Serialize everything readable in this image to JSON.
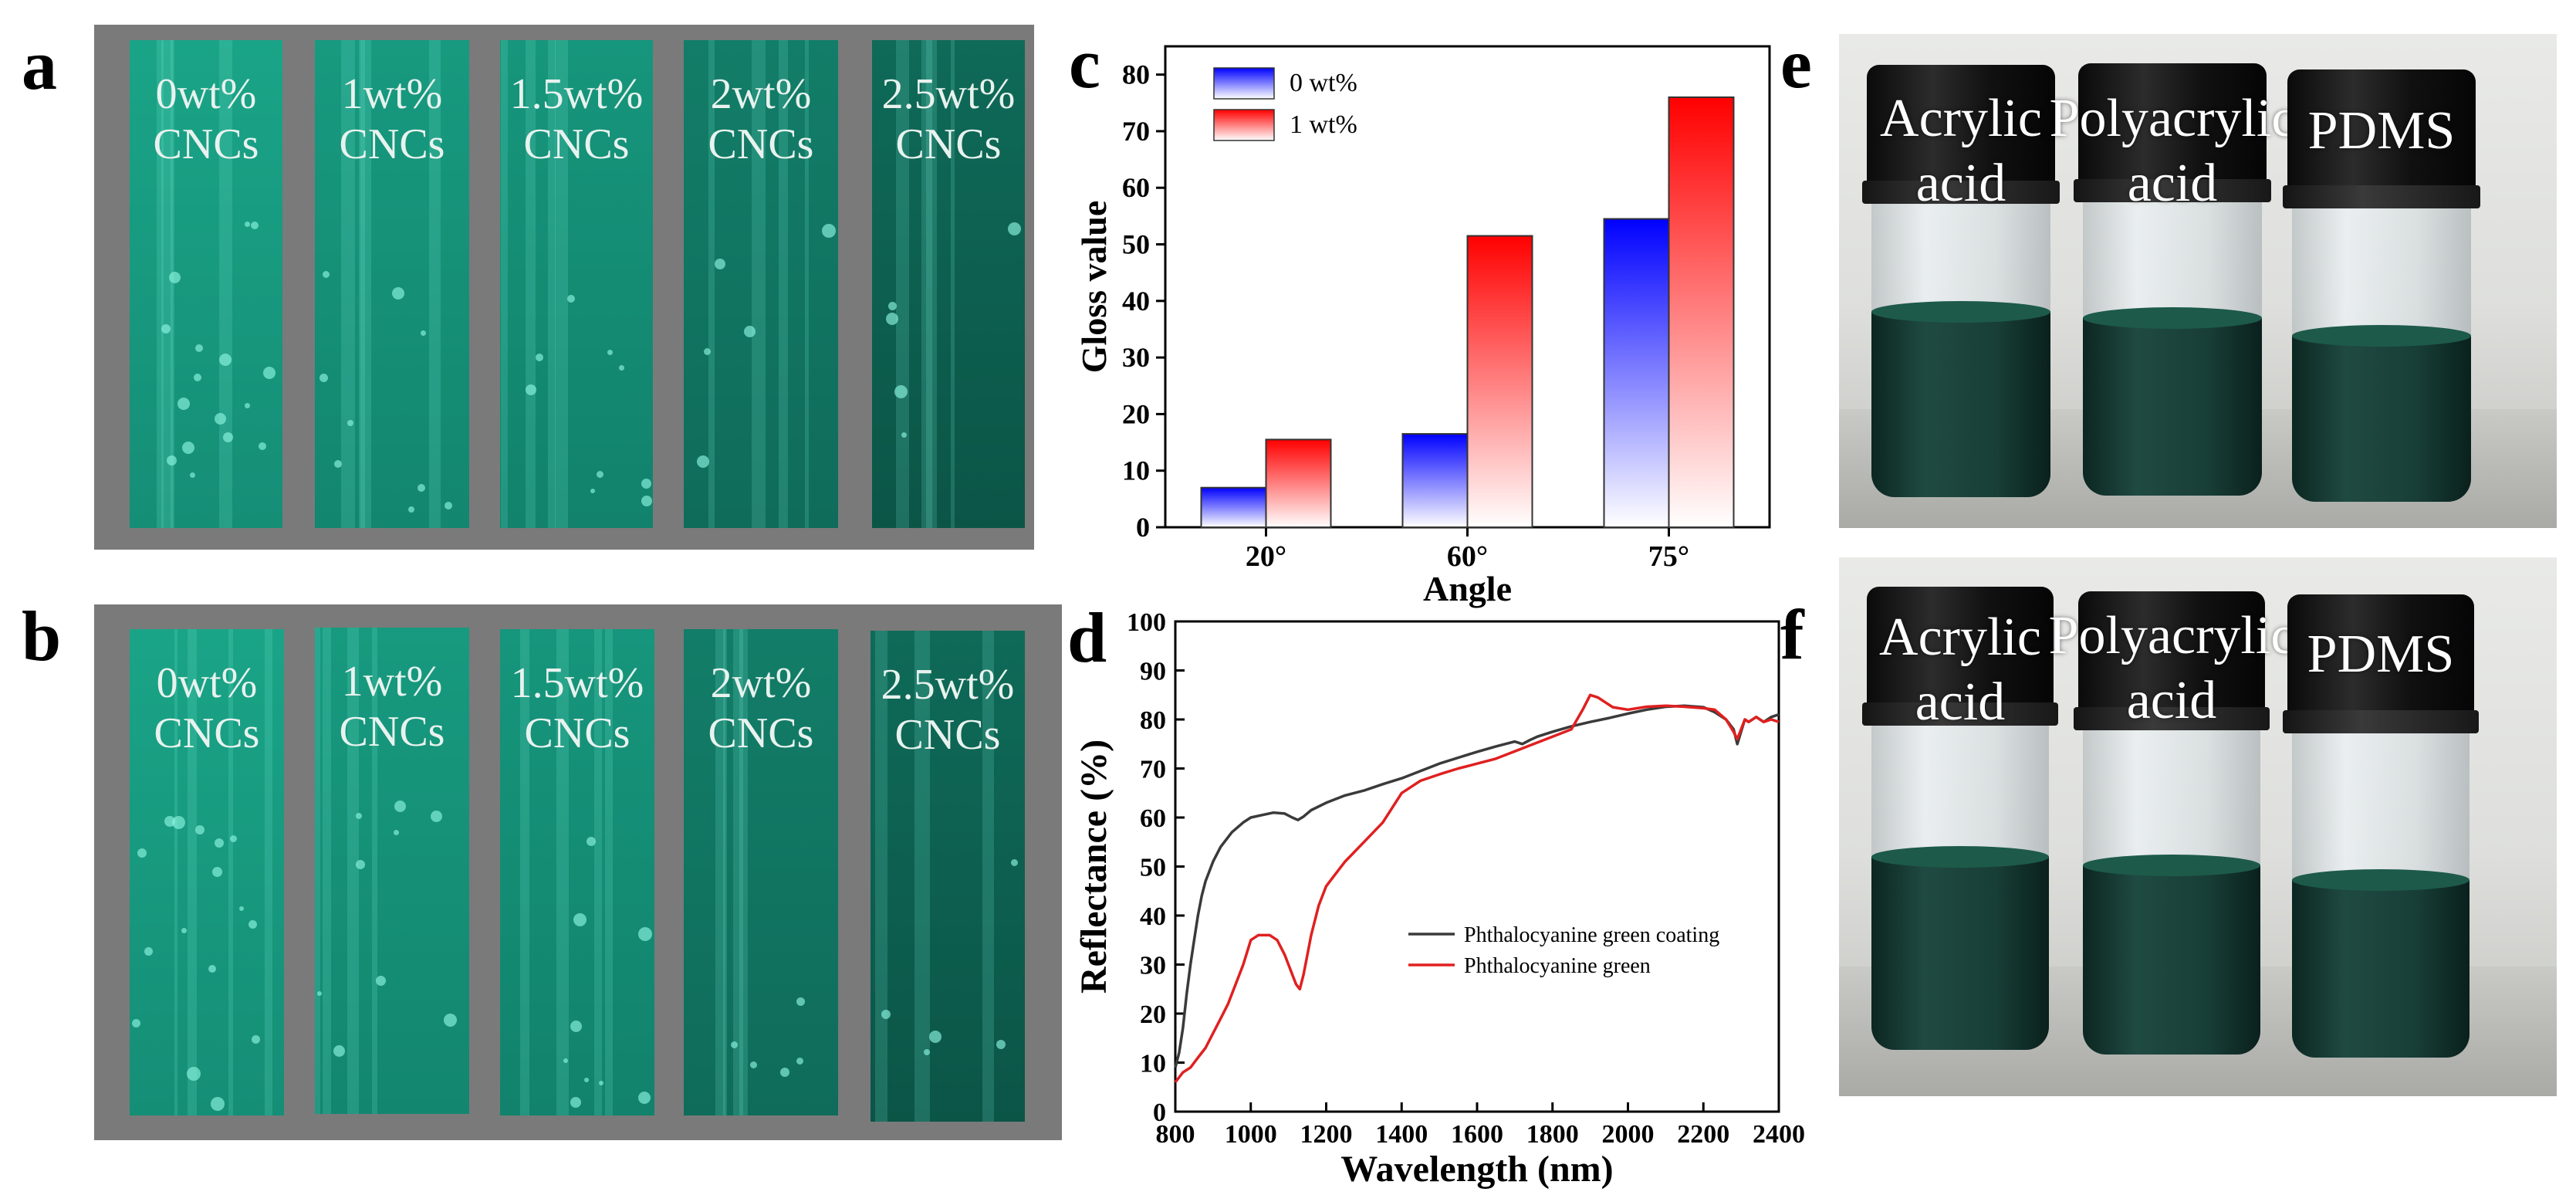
{
  "panels": {
    "a": {
      "label": "a"
    },
    "b": {
      "label": "b"
    },
    "c": {
      "label": "c"
    },
    "d": {
      "label": "d"
    },
    "e": {
      "label": "e"
    },
    "f": {
      "label": "f"
    }
  },
  "strips": [
    {
      "line1": "0wt%",
      "line2": "CNCs",
      "color_top": "#1aa487",
      "color_bottom": "#158e76"
    },
    {
      "line1": "1wt%",
      "line2": "CNCs",
      "color_top": "#179a7f",
      "color_bottom": "#13866f"
    },
    {
      "line1": "1.5wt%",
      "line2": "CNCs",
      "color_top": "#16967c",
      "color_bottom": "#12826c"
    },
    {
      "line1": "2wt%",
      "line2": "CNCs",
      "color_top": "#127d68",
      "color_bottom": "#0f6c5a"
    },
    {
      "line1": "2.5wt%",
      "line2": "CNCs",
      "color_top": "#0f6a58",
      "color_bottom": "#0b5547"
    }
  ],
  "vials_e": [
    {
      "line1": "Acrylic",
      "line2": "acid"
    },
    {
      "line1": "Polyacrylic",
      "line2": "acid"
    },
    {
      "line1": "PDMS",
      "line2": ""
    }
  ],
  "vials_f": [
    {
      "line1": "Acrylic",
      "line2": "acid"
    },
    {
      "line1": "Polyacrylic",
      "line2": "acid"
    },
    {
      "line1": "PDMS",
      "line2": ""
    }
  ],
  "chart_data": [
    {
      "id": "c",
      "type": "bar",
      "title": "",
      "xlabel": "Angle",
      "ylabel": "Gloss value",
      "categories": [
        "20°",
        "60°",
        "75°"
      ],
      "series": [
        {
          "name": "0 wt%",
          "values": [
            7,
            16.5,
            54.5
          ],
          "color": "#0000ff"
        },
        {
          "name": "1 wt%",
          "values": [
            15.5,
            51.5,
            76
          ],
          "color": "#ff0000"
        }
      ],
      "ylim": [
        0,
        85
      ],
      "yticks": [
        0,
        10,
        20,
        30,
        40,
        50,
        60,
        70,
        80
      ],
      "legend": "top-left"
    },
    {
      "id": "d",
      "type": "line",
      "title": "",
      "xlabel": "Wavelength (nm)",
      "ylabel": "Reflectance (%)",
      "xlim": [
        800,
        2400
      ],
      "ylim": [
        0,
        100
      ],
      "xticks": [
        800,
        1000,
        1200,
        1400,
        1600,
        1800,
        2000,
        2200,
        2400
      ],
      "yticks": [
        0,
        10,
        20,
        30,
        40,
        50,
        60,
        70,
        80,
        90,
        100
      ],
      "legend": "center-right",
      "series": [
        {
          "name": "Phthalocyanine green coating",
          "color": "#3a3a3a",
          "x": [
            800,
            810,
            820,
            830,
            840,
            850,
            860,
            870,
            880,
            900,
            920,
            950,
            980,
            1000,
            1030,
            1060,
            1090,
            1110,
            1125,
            1140,
            1160,
            1200,
            1250,
            1300,
            1350,
            1400,
            1450,
            1500,
            1550,
            1600,
            1650,
            1700,
            1720,
            1740,
            1760,
            1800,
            1850,
            1900,
            1950,
            2000,
            2050,
            2100,
            2150,
            2200,
            2230,
            2260,
            2280,
            2290,
            2300,
            2310,
            2320,
            2340,
            2360,
            2380,
            2400
          ],
          "y": [
            9,
            12,
            17,
            24,
            30,
            35,
            40,
            44,
            47,
            51,
            54,
            57,
            59,
            60,
            60.5,
            61,
            60.8,
            60,
            59.5,
            60.2,
            61.5,
            63,
            64.5,
            65.5,
            66.8,
            68,
            69.5,
            71,
            72.2,
            73.4,
            74.5,
            75.5,
            75,
            75.8,
            76.5,
            77.5,
            78.6,
            79.5,
            80.3,
            81.2,
            82,
            82.6,
            82.8,
            82.5,
            81.5,
            80,
            78,
            75,
            77.5,
            80,
            79.5,
            80.5,
            79.5,
            80.5,
            81
          ]
        },
        {
          "name": "Phthalocyanine green",
          "color": "#e02020",
          "x": [
            800,
            820,
            840,
            860,
            880,
            900,
            920,
            940,
            960,
            980,
            1000,
            1020,
            1050,
            1070,
            1090,
            1100,
            1110,
            1120,
            1130,
            1140,
            1160,
            1180,
            1200,
            1250,
            1300,
            1350,
            1400,
            1450,
            1500,
            1550,
            1600,
            1650,
            1700,
            1750,
            1800,
            1850,
            1880,
            1900,
            1920,
            1940,
            1960,
            2000,
            2050,
            2100,
            2150,
            2200,
            2230,
            2260,
            2280,
            2290,
            2300,
            2310,
            2320,
            2340,
            2360,
            2380,
            2400
          ],
          "y": [
            6,
            8,
            9,
            11,
            13,
            16,
            19,
            22,
            26,
            30,
            35,
            36,
            36,
            35,
            32,
            30,
            28,
            26,
            25,
            28,
            36,
            42,
            46,
            51,
            55,
            59,
            65,
            67.5,
            68.8,
            70,
            71,
            72,
            73.5,
            75,
            76.5,
            78,
            82,
            85,
            84.5,
            83.5,
            82.5,
            82,
            82.6,
            82.8,
            82.6,
            82.3,
            82,
            80,
            77.5,
            76,
            78,
            80,
            79.5,
            80.5,
            79.5,
            80,
            79.5
          ]
        }
      ]
    }
  ]
}
